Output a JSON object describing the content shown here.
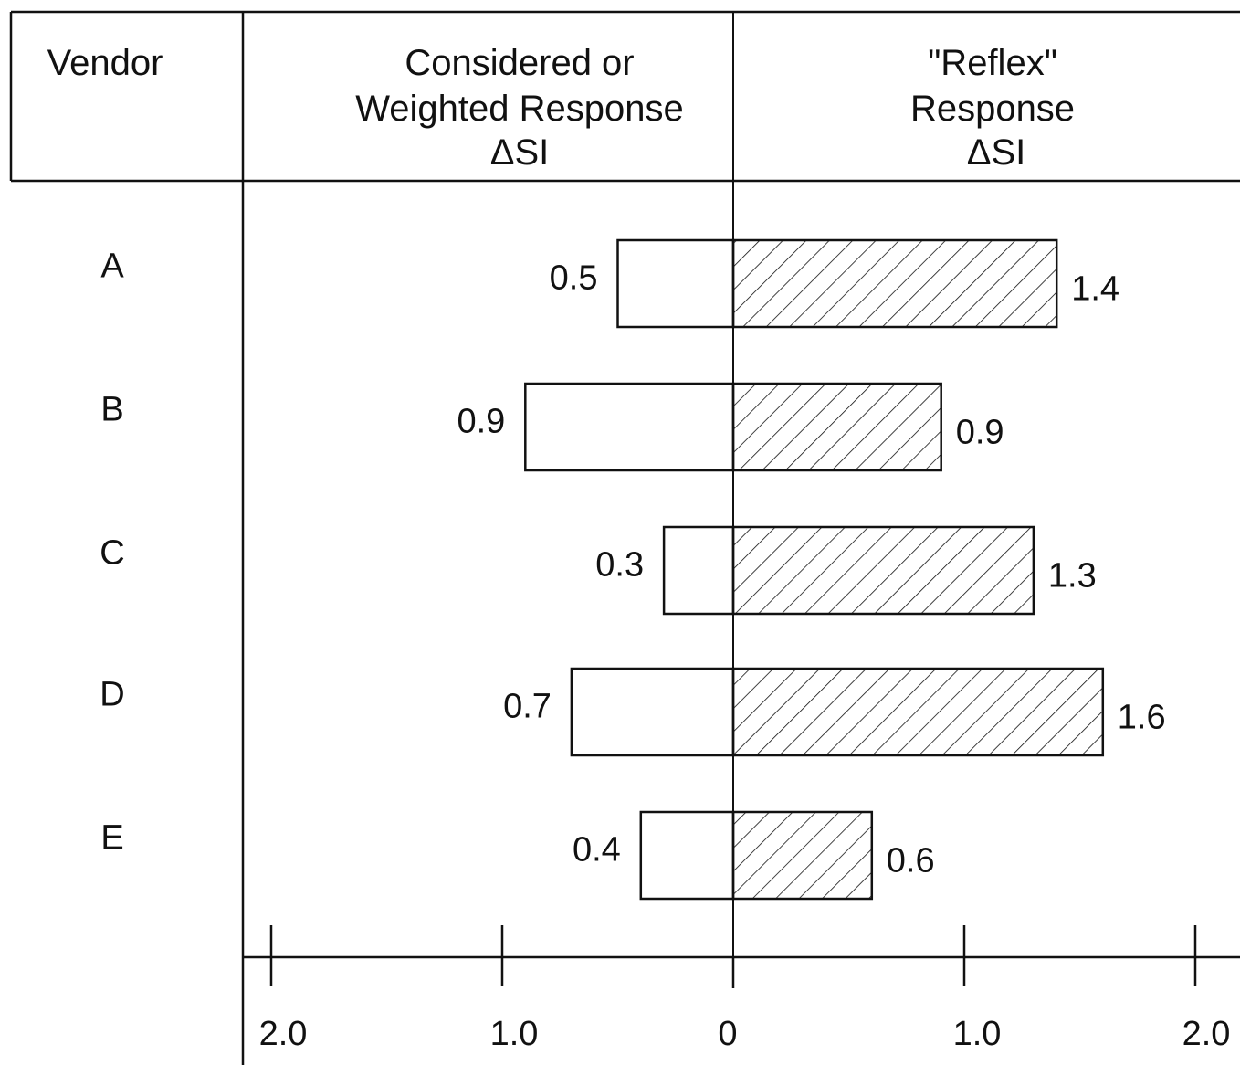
{
  "headers": {
    "vendor": "Vendor",
    "considered": [
      "Considered or",
      "Weighted Response",
      "ΔSI"
    ],
    "reflex": [
      "\"Reflex\"",
      "Response",
      "ΔSI"
    ]
  },
  "chart_data": {
    "type": "bar",
    "orientation": "horizontal-diverging",
    "categories": [
      "A",
      "B",
      "C",
      "D",
      "E"
    ],
    "series": [
      {
        "name": "Considered or Weighted Response ΔSI",
        "direction": "left",
        "fill": "none",
        "values": [
          0.5,
          0.9,
          0.3,
          0.7,
          0.4
        ]
      },
      {
        "name": "\"Reflex\" Response ΔSI",
        "direction": "right",
        "fill": "hatched",
        "values": [
          1.4,
          0.9,
          1.3,
          1.6,
          0.6
        ]
      }
    ],
    "value_labels": {
      "left": [
        "0.5",
        "0.9",
        "0.3",
        "0.7",
        "0.4"
      ],
      "right": [
        "1.4",
        "0.9",
        "1.3",
        "1.6",
        "0.6"
      ]
    },
    "axis": {
      "ticks": [
        2.0,
        1.0,
        0,
        1.0,
        2.0
      ],
      "tick_labels": [
        "2.0",
        "1.0",
        "0",
        "1.0",
        "2.0"
      ],
      "range": [
        -2.0,
        2.0
      ]
    }
  }
}
